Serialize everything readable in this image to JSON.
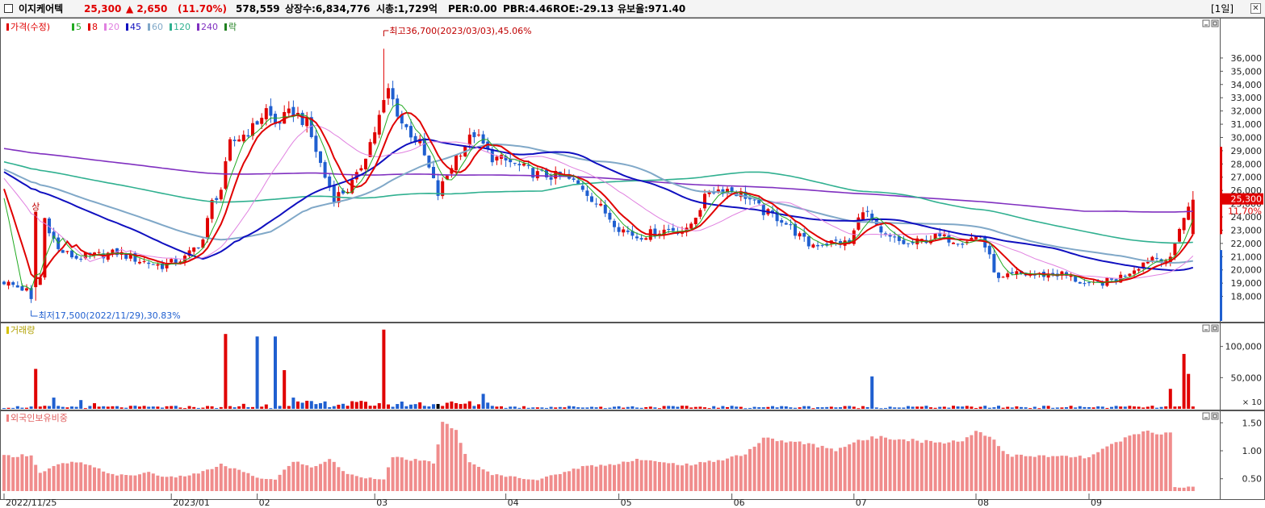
{
  "header": {
    "stock_name": "이지케어텍",
    "price": "25,300",
    "change": "▲ 2,650",
    "change_pct": "(11.70%)",
    "volume": "578,559",
    "listed_shares": "상장수:6,834,776",
    "market_cap": "시총:1,729억",
    "per": "PER:0.00",
    "pbr": "PBR:4.46",
    "roe": "ROE:-29.13",
    "reserve_ratio": "유보율:971.40",
    "period": "[1일]",
    "up_color": "#e00000",
    "down_color": "#1f5fd0"
  },
  "chart_data": [
    {
      "type": "candlestick",
      "legend": [
        {
          "label": "가격(수정)",
          "color": "#e00000"
        },
        {
          "label": "5",
          "color": "#22aa22"
        },
        {
          "label": "8",
          "color": "#e00000"
        },
        {
          "label": "20",
          "color": "#e080e0"
        },
        {
          "label": "45",
          "color": "#1010c0"
        },
        {
          "label": "60",
          "color": "#80a8c8"
        },
        {
          "label": "120",
          "color": "#30b090"
        },
        {
          "label": "240",
          "color": "#8030c0"
        },
        {
          "label": "락",
          "color": "#208020"
        }
      ],
      "y_ticks": [
        "18,000",
        "19,000",
        "20,000",
        "21,000",
        "22,000",
        "23,000",
        "24,000",
        "25,000",
        "26,000",
        "27,000",
        "28,000",
        "29,000",
        "30,000",
        "31,000",
        "32,000",
        "33,000",
        "34,000",
        "35,000",
        "36,000"
      ],
      "ylim": [
        17000,
        37700
      ],
      "x_ticks": [
        "2022/11/25",
        "2023/01",
        "02",
        "03",
        "04",
        "05",
        "06",
        "07",
        "08",
        "09"
      ],
      "current_price_label": "25,300",
      "current_change_label": "11.70%",
      "limit_up_label": "상",
      "high_annotation": "최고36,700(2023/03/03),45.06%",
      "low_annotation": "최저17,500(2022/11/29),30.83%",
      "close_anchors": [
        [
          0,
          19100
        ],
        [
          6,
          18300
        ],
        [
          8,
          19400
        ],
        [
          9,
          23900
        ],
        [
          12,
          21500
        ],
        [
          16,
          20900
        ],
        [
          25,
          21300
        ],
        [
          30,
          20700
        ],
        [
          35,
          20300
        ],
        [
          40,
          20900
        ],
        [
          44,
          22300
        ],
        [
          46,
          25100
        ],
        [
          48,
          26100
        ],
        [
          50,
          29500
        ],
        [
          55,
          30700
        ],
        [
          58,
          32100
        ],
        [
          60,
          31000
        ],
        [
          64,
          32000
        ],
        [
          67,
          31000
        ],
        [
          71,
          27000
        ],
        [
          73,
          25500
        ],
        [
          76,
          26100
        ],
        [
          78,
          27000
        ],
        [
          82,
          30500
        ],
        [
          85,
          33600
        ],
        [
          88,
          31100
        ],
        [
          92,
          29500
        ],
        [
          96,
          25700
        ],
        [
          100,
          28600
        ],
        [
          104,
          30300
        ],
        [
          108,
          28500
        ],
        [
          112,
          28100
        ],
        [
          118,
          27200
        ],
        [
          124,
          27000
        ],
        [
          128,
          26200
        ],
        [
          136,
          23200
        ],
        [
          140,
          22500
        ],
        [
          147,
          23100
        ],
        [
          151,
          22900
        ],
        [
          156,
          26000
        ],
        [
          160,
          26100
        ],
        [
          164,
          25600
        ],
        [
          168,
          24400
        ],
        [
          172,
          23800
        ],
        [
          178,
          21900
        ],
        [
          184,
          22100
        ],
        [
          187,
          22000
        ],
        [
          190,
          24700
        ],
        [
          194,
          22600
        ],
        [
          200,
          21900
        ],
        [
          206,
          22500
        ],
        [
          212,
          22200
        ],
        [
          216,
          22600
        ],
        [
          220,
          19200
        ],
        [
          224,
          19700
        ],
        [
          228,
          19600
        ],
        [
          234,
          19700
        ],
        [
          240,
          18800
        ],
        [
          246,
          19300
        ],
        [
          250,
          20100
        ],
        [
          254,
          21000
        ],
        [
          258,
          20700
        ],
        [
          260,
          23300
        ],
        [
          263,
          25300
        ]
      ],
      "series": [
        {
          "name": "5",
          "ma_period": 5
        },
        {
          "name": "8",
          "ma_period": 8
        },
        {
          "name": "20",
          "ma_period": 20
        },
        {
          "name": "45",
          "ma_period": 45
        },
        {
          "name": "60",
          "ma_period": 60
        },
        {
          "name": "120",
          "ma_period": 120
        },
        {
          "name": "240",
          "ma_period": 240
        }
      ]
    },
    {
      "type": "bar",
      "legend": [
        {
          "label": "거래량",
          "color": "#d4c000"
        }
      ],
      "y_ticks": [
        "50,000",
        "100,000"
      ],
      "unit_label": "× 10",
      "ylim": [
        0,
        128000
      ],
      "base_volume": 2500,
      "spikes": [
        [
          7,
          64000
        ],
        [
          11,
          18000
        ],
        [
          17,
          14000
        ],
        [
          20,
          9000
        ],
        [
          49,
          120000
        ],
        [
          53,
          8000
        ],
        [
          56,
          116000
        ],
        [
          58,
          7000
        ],
        [
          60,
          116000
        ],
        [
          62,
          62000
        ],
        [
          64,
          18000
        ],
        [
          84,
          127000
        ],
        [
          85,
          7000
        ],
        [
          106,
          24000
        ],
        [
          192,
          52000
        ],
        [
          258,
          32000
        ],
        [
          261,
          88000
        ],
        [
          262,
          56000
        ]
      ]
    },
    {
      "type": "bar",
      "legend": [
        {
          "label": "외국인보유비중",
          "color": "#f08080"
        }
      ],
      "y_ticks": [
        "0.50",
        "1.00",
        "1.50"
      ],
      "ylim": [
        0.28,
        1.62
      ],
      "ratio_anchors": [
        [
          0,
          0.9
        ],
        [
          6,
          0.93
        ],
        [
          8,
          0.6
        ],
        [
          12,
          0.75
        ],
        [
          16,
          0.8
        ],
        [
          20,
          0.7
        ],
        [
          24,
          0.58
        ],
        [
          28,
          0.55
        ],
        [
          32,
          0.62
        ],
        [
          36,
          0.52
        ],
        [
          40,
          0.55
        ],
        [
          44,
          0.62
        ],
        [
          48,
          0.75
        ],
        [
          52,
          0.65
        ],
        [
          56,
          0.52
        ],
        [
          60,
          0.48
        ],
        [
          64,
          0.82
        ],
        [
          68,
          0.7
        ],
        [
          72,
          0.85
        ],
        [
          76,
          0.58
        ],
        [
          80,
          0.52
        ],
        [
          84,
          0.5
        ],
        [
          86,
          0.88
        ],
        [
          92,
          0.82
        ],
        [
          95,
          0.78
        ],
        [
          97,
          1.5
        ],
        [
          100,
          1.35
        ],
        [
          103,
          0.78
        ],
        [
          108,
          0.58
        ],
        [
          114,
          0.52
        ],
        [
          118,
          0.48
        ],
        [
          124,
          0.62
        ],
        [
          128,
          0.72
        ],
        [
          134,
          0.75
        ],
        [
          140,
          0.85
        ],
        [
          146,
          0.78
        ],
        [
          152,
          0.75
        ],
        [
          158,
          0.83
        ],
        [
          164,
          0.95
        ],
        [
          168,
          1.22
        ],
        [
          172,
          1.18
        ],
        [
          178,
          1.12
        ],
        [
          184,
          1.02
        ],
        [
          188,
          1.15
        ],
        [
          194,
          1.26
        ],
        [
          200,
          1.2
        ],
        [
          206,
          1.15
        ],
        [
          212,
          1.18
        ],
        [
          215,
          1.35
        ],
        [
          218,
          1.28
        ],
        [
          222,
          0.92
        ],
        [
          228,
          0.9
        ],
        [
          234,
          0.9
        ],
        [
          240,
          0.88
        ],
        [
          246,
          1.15
        ],
        [
          250,
          1.28
        ],
        [
          253,
          1.35
        ],
        [
          258,
          1.3
        ],
        [
          259,
          0.35
        ],
        [
          263,
          0.35
        ]
      ]
    }
  ]
}
